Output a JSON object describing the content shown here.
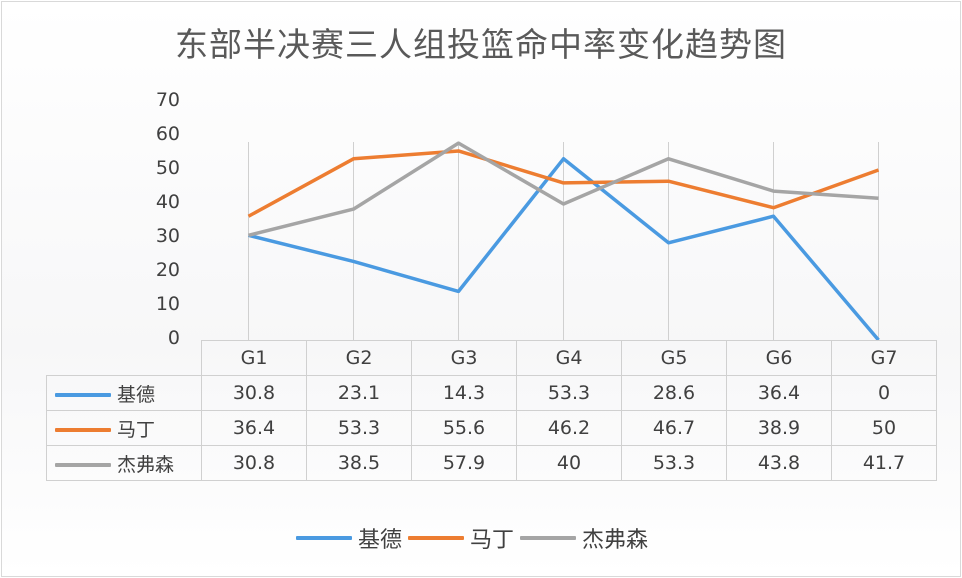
{
  "title": "东部半决赛三人组投篮命中率变化趋势图",
  "chart_data": {
    "type": "line",
    "title": "东部半决赛三人组投篮命中率变化趋势图",
    "categories": [
      "G1",
      "G2",
      "G3",
      "G4",
      "G5",
      "G6",
      "G7"
    ],
    "series": [
      {
        "name": "基德",
        "color": "#4a9ae1",
        "values": [
          30.8,
          23.1,
          14.3,
          53.3,
          28.6,
          36.4,
          0
        ]
      },
      {
        "name": "马丁",
        "color": "#ed7d31",
        "values": [
          36.4,
          53.3,
          55.6,
          46.2,
          46.7,
          38.9,
          50
        ]
      },
      {
        "name": "杰弗森",
        "color": "#a5a5a5",
        "values": [
          30.8,
          38.5,
          57.9,
          40,
          53.3,
          43.8,
          41.7
        ]
      }
    ],
    "xlabel": "",
    "ylabel": "",
    "ylim": [
      0,
      70
    ],
    "yticks": [
      "70",
      "60",
      "50",
      "40",
      "30",
      "20",
      "10",
      "0"
    ],
    "grid": "vertical category lines",
    "legend_position": "bottom",
    "data_table": true
  },
  "table": {
    "headers": [
      "G1",
      "G2",
      "G3",
      "G4",
      "G5",
      "G6",
      "G7"
    ],
    "rows": [
      {
        "label": "基德",
        "cells": [
          "30.8",
          "23.1",
          "14.3",
          "53.3",
          "28.6",
          "36.4",
          "0"
        ]
      },
      {
        "label": "马丁",
        "cells": [
          "36.4",
          "53.3",
          "55.6",
          "46.2",
          "46.7",
          "38.9",
          "50"
        ]
      },
      {
        "label": "杰弗森",
        "cells": [
          "30.8",
          "38.5",
          "57.9",
          "40",
          "53.3",
          "43.8",
          "41.7"
        ]
      }
    ]
  },
  "legend": [
    "基德",
    "马丁",
    "杰弗森"
  ],
  "colors": {
    "kidd": "#4a9ae1",
    "martin": "#ed7d31",
    "jefferson": "#a5a5a5"
  }
}
